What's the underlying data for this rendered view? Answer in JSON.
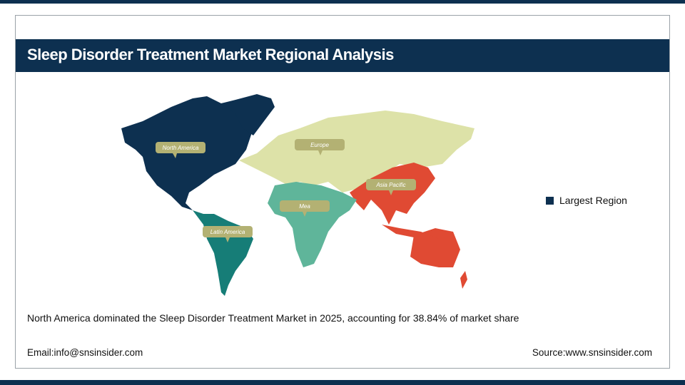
{
  "header": {
    "title": "Sleep Disorder Treatment Market Regional Analysis"
  },
  "map": {
    "regions": [
      {
        "name": "North America",
        "color": "#0d3050"
      },
      {
        "name": "Europe",
        "color": "#dde2a8"
      },
      {
        "name": "Asia Pacific",
        "color": "#e04a33"
      },
      {
        "name": "Mea",
        "color": "#5fb59a"
      },
      {
        "name": "Latin America",
        "color": "#167d77"
      }
    ],
    "label_color": "#b3b173"
  },
  "legend": {
    "label": "Largest Region",
    "color": "#0d3050"
  },
  "summary": "North America dominated the Sleep Disorder Treatment Market in 2025, accounting for 38.84% of market share",
  "footer": {
    "email": "Email:info@snsinsider.com",
    "source": "Source:www.snsinsider.com"
  }
}
